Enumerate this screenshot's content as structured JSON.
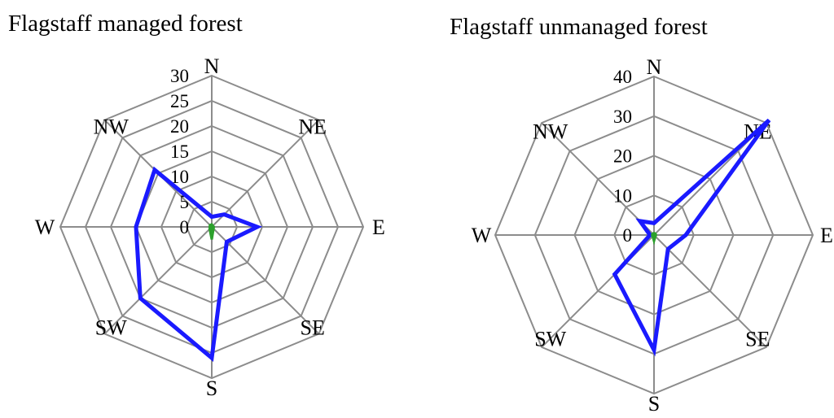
{
  "chart_data": [
    {
      "type": "radar",
      "title": "Flagstaff managed forest",
      "categories": [
        "N",
        "NE",
        "E",
        "SE",
        "S",
        "SW",
        "W",
        "NW"
      ],
      "rlim": [
        0,
        30
      ],
      "rticks": [
        "0",
        "5",
        "10",
        "15",
        "20",
        "25",
        "30"
      ],
      "grid": true,
      "series": [
        {
          "color": "#1a1aff",
          "values": [
            2,
            3.5,
            9,
            4.2,
            26,
            20,
            15,
            16
          ]
        },
        {
          "color": "#2ca02c",
          "values": [
            0.5,
            0.3,
            0.4,
            0.5,
            2.5,
            0.6,
            0.4,
            0.5
          ]
        }
      ]
    },
    {
      "type": "radar",
      "title": "Flagstaff unmanaged forest",
      "categories": [
        "N",
        "NE",
        "E",
        "SE",
        "S",
        "SW",
        "W",
        "NW"
      ],
      "rlim": [
        0,
        40
      ],
      "rticks": [
        "0",
        "10",
        "20",
        "30",
        "40"
      ],
      "grid": true,
      "series": [
        {
          "color": "#1a1aff",
          "values": [
            3,
            41,
            8,
            5,
            29,
            14,
            1,
            5
          ]
        },
        {
          "color": "#2ca02c",
          "values": [
            0.5,
            0.5,
            0.5,
            0.5,
            1.5,
            0.5,
            0.5,
            0.5
          ]
        }
      ]
    }
  ]
}
